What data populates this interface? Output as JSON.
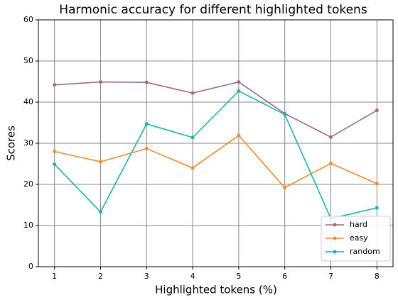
{
  "chart_data": {
    "type": "line",
    "title": "Harmonic accuracy for different highlighted tokens",
    "x_label": "Highlighted tokens (%)",
    "y_label": "Scores",
    "x": [
      1,
      2,
      3,
      4,
      5,
      6,
      7,
      8
    ],
    "series": [
      {
        "name": "hard",
        "color": "#9e6b83",
        "values": [
          44.2,
          44.9,
          44.8,
          42.2,
          44.9,
          37.2,
          31.5,
          38.0
        ]
      },
      {
        "name": "easy",
        "color": "#f28a30",
        "values": [
          28.0,
          25.5,
          28.7,
          24.0,
          31.9,
          19.2,
          25.1,
          20.2
        ]
      },
      {
        "name": "random",
        "color": "#20b2aa",
        "values": [
          24.9,
          13.3,
          34.7,
          31.4,
          42.7,
          37.0,
          11.7,
          14.3
        ]
      }
    ],
    "xlim": [
      0.65,
      8.35
    ],
    "xticks": [
      1,
      2,
      3,
      4,
      5,
      6,
      7,
      8
    ],
    "ylim": [
      0,
      60
    ],
    "yticks": [
      0,
      10,
      20,
      30,
      40,
      50,
      60
    ],
    "grid": true,
    "legend": "lower right"
  }
}
